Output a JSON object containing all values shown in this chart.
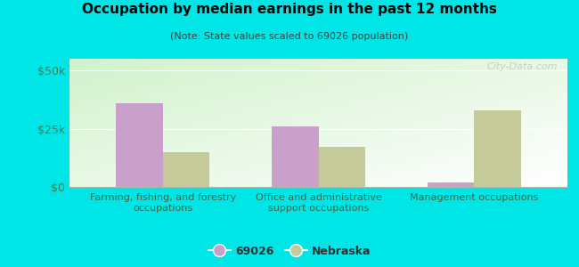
{
  "title": "Occupation by median earnings in the past 12 months",
  "subtitle": "(Note: State values scaled to 69026 population)",
  "background_color": "#00e5e5",
  "categories": [
    "Farming, fishing, and forestry\noccupations",
    "Office and administrative\nsupport occupations",
    "Management occupations"
  ],
  "series_69026": [
    36000,
    26000,
    2000
  ],
  "series_nebraska": [
    15000,
    17000,
    33000
  ],
  "color_69026": "#c9a0c9",
  "color_nebraska": "#c5ca9a",
  "ylim": [
    0,
    55000
  ],
  "yticks": [
    0,
    25000,
    50000
  ],
  "ytick_labels": [
    "$0",
    "$25k",
    "$50k"
  ],
  "legend_label_69026": "69026",
  "legend_label_nebraska": "Nebraska",
  "watermark": "City-Data.com",
  "bar_width": 0.3,
  "group_positions": [
    0,
    1,
    2
  ]
}
